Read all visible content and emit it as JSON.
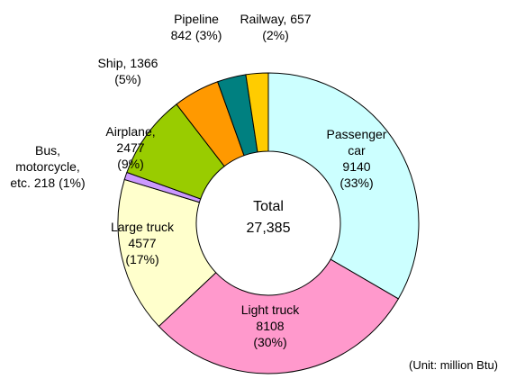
{
  "chart_data": {
    "type": "donut",
    "categories": [
      "Passenger car",
      "Light truck",
      "Large truck",
      "Bus, motorcycle, etc.",
      "Airplane,",
      "Ship,",
      "Pipeline",
      "Railway,"
    ],
    "values": [
      9140,
      8108,
      4577,
      218,
      2477,
      1366,
      842,
      657
    ],
    "percent_labels": [
      "(33%)",
      "(30%)",
      "(17%)",
      "(1%)",
      "(9%)",
      "(5%)",
      "(3%)",
      "(2%)"
    ],
    "colors": [
      "#ccffff",
      "#ff99cc",
      "#ffffcc",
      "#cc99ff",
      "#99cc00",
      "#ff9900",
      "#008080",
      "#ffcc00"
    ],
    "center_title": "Total",
    "total": 27385,
    "total_label": "27,385",
    "note": "(Unit: million Btu)"
  }
}
